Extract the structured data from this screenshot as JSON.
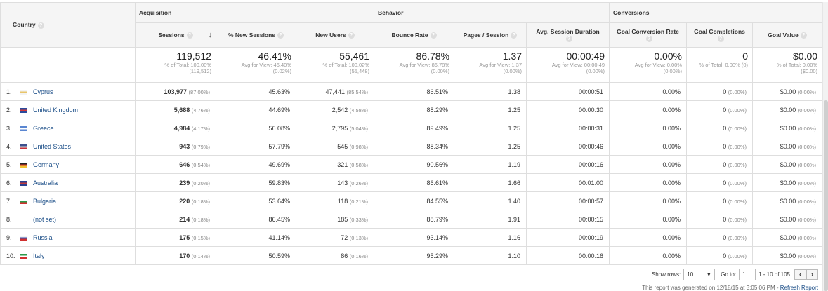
{
  "groups": {
    "acquisition": "Acquisition",
    "behavior": "Behavior",
    "conversions": "Conversions"
  },
  "columns": {
    "country": "Country",
    "sessions": "Sessions",
    "new_sessions": "% New Sessions",
    "new_users": "New Users",
    "bounce_rate": "Bounce Rate",
    "pages_session": "Pages / Session",
    "avg_duration": "Avg. Session Duration",
    "goal_conv": "Goal Conversion Rate",
    "goal_comp": "Goal Completions",
    "goal_value": "Goal Value"
  },
  "sort_icon": "arrow-down-icon",
  "totals": {
    "sessions": {
      "big": "119,512",
      "s1": "% of Total: 100.00%",
      "s2": "(119,512)"
    },
    "new_sessions": {
      "big": "46.41%",
      "s1": "Avg for View: 46.40%",
      "s2": "(0.02%)"
    },
    "new_users": {
      "big": "55,461",
      "s1": "% of Total: 100.02%",
      "s2": "(55,448)"
    },
    "bounce_rate": {
      "big": "86.78%",
      "s1": "Avg for View: 86.78%",
      "s2": "(0.00%)"
    },
    "pages_session": {
      "big": "1.37",
      "s1": "Avg for View: 1.37",
      "s2": "(0.00%)"
    },
    "avg_duration": {
      "big": "00:00:49",
      "s1": "Avg for View: 00:00:49",
      "s2": "(0.00%)"
    },
    "goal_conv": {
      "big": "0.00%",
      "s1": "Avg for View: 0.00%",
      "s2": "(0.00%)"
    },
    "goal_comp": {
      "big": "0",
      "s1": "% of Total: 0.00% (0)",
      "s2": ""
    },
    "goal_value": {
      "big": "$0.00",
      "s1": "% of Total: 0.00%",
      "s2": "($0.00)"
    }
  },
  "rows": [
    {
      "idx": "1.",
      "country": "Cyprus",
      "flag": [
        "#f3f3f3",
        "#e8c46a",
        "#f3f3f3"
      ],
      "sessions": "103,977",
      "sessions_pct": "(87.00%)",
      "new_sessions": "45.63%",
      "new_users": "47,441",
      "new_users_pct": "(85.54%)",
      "bounce": "86.51%",
      "pages": "1.38",
      "duration": "00:00:51",
      "conv": "0.00%",
      "comp": "0",
      "comp_pct": "(0.00%)",
      "value": "$0.00",
      "value_pct": "(0.00%)"
    },
    {
      "idx": "2.",
      "country": "United Kingdom",
      "flag": [
        "#2b4a9c",
        "#d43a3a",
        "#2b4a9c"
      ],
      "sessions": "5,688",
      "sessions_pct": "(4.76%)",
      "new_sessions": "44.69%",
      "new_users": "2,542",
      "new_users_pct": "(4.58%)",
      "bounce": "88.29%",
      "pages": "1.25",
      "duration": "00:00:30",
      "conv": "0.00%",
      "comp": "0",
      "comp_pct": "(0.00%)",
      "value": "$0.00",
      "value_pct": "(0.00%)"
    },
    {
      "idx": "3.",
      "country": "Greece",
      "flag": [
        "#5a86d1",
        "#ffffff",
        "#5a86d1"
      ],
      "sessions": "4,984",
      "sessions_pct": "(4.17%)",
      "new_sessions": "56.08%",
      "new_users": "2,795",
      "new_users_pct": "(5.04%)",
      "bounce": "89.49%",
      "pages": "1.25",
      "duration": "00:00:31",
      "conv": "0.00%",
      "comp": "0",
      "comp_pct": "(0.00%)",
      "value": "$0.00",
      "value_pct": "(0.00%)"
    },
    {
      "idx": "4.",
      "country": "United States",
      "flag": [
        "#3c4f8c",
        "#d8d8d8",
        "#c8303a"
      ],
      "sessions": "943",
      "sessions_pct": "(0.79%)",
      "new_sessions": "57.79%",
      "new_users": "545",
      "new_users_pct": "(0.98%)",
      "bounce": "88.34%",
      "pages": "1.25",
      "duration": "00:00:46",
      "conv": "0.00%",
      "comp": "0",
      "comp_pct": "(0.00%)",
      "value": "$0.00",
      "value_pct": "(0.00%)"
    },
    {
      "idx": "5.",
      "country": "Germany",
      "flag": [
        "#222222",
        "#d22a2a",
        "#f2c230"
      ],
      "sessions": "646",
      "sessions_pct": "(0.54%)",
      "new_sessions": "49.69%",
      "new_users": "321",
      "new_users_pct": "(0.58%)",
      "bounce": "90.56%",
      "pages": "1.19",
      "duration": "00:00:16",
      "conv": "0.00%",
      "comp": "0",
      "comp_pct": "(0.00%)",
      "value": "$0.00",
      "value_pct": "(0.00%)"
    },
    {
      "idx": "6.",
      "country": "Australia",
      "flag": [
        "#2a3f8f",
        "#c43b3b",
        "#2a3f8f"
      ],
      "sessions": "239",
      "sessions_pct": "(0.20%)",
      "new_sessions": "59.83%",
      "new_users": "143",
      "new_users_pct": "(0.26%)",
      "bounce": "86.61%",
      "pages": "1.66",
      "duration": "00:01:00",
      "conv": "0.00%",
      "comp": "0",
      "comp_pct": "(0.00%)",
      "value": "$0.00",
      "value_pct": "(0.00%)"
    },
    {
      "idx": "7.",
      "country": "Bulgaria",
      "flag": [
        "#ffffff",
        "#2c9a4a",
        "#d23030"
      ],
      "sessions": "220",
      "sessions_pct": "(0.18%)",
      "new_sessions": "53.64%",
      "new_users": "118",
      "new_users_pct": "(0.21%)",
      "bounce": "84.55%",
      "pages": "1.40",
      "duration": "00:00:57",
      "conv": "0.00%",
      "comp": "0",
      "comp_pct": "(0.00%)",
      "value": "$0.00",
      "value_pct": "(0.00%)"
    },
    {
      "idx": "8.",
      "country": "(not set)",
      "flag": [
        "#ffffff",
        "#ffffff",
        "#ffffff"
      ],
      "sessions": "214",
      "sessions_pct": "(0.18%)",
      "new_sessions": "86.45%",
      "new_users": "185",
      "new_users_pct": "(0.33%)",
      "bounce": "88.79%",
      "pages": "1.91",
      "duration": "00:00:15",
      "conv": "0.00%",
      "comp": "0",
      "comp_pct": "(0.00%)",
      "value": "$0.00",
      "value_pct": "(0.00%)"
    },
    {
      "idx": "9.",
      "country": "Russia",
      "flag": [
        "#f2f2f2",
        "#2f4fb0",
        "#d0302f"
      ],
      "sessions": "175",
      "sessions_pct": "(0.15%)",
      "new_sessions": "41.14%",
      "new_users": "72",
      "new_users_pct": "(0.13%)",
      "bounce": "93.14%",
      "pages": "1.16",
      "duration": "00:00:19",
      "conv": "0.00%",
      "comp": "0",
      "comp_pct": "(0.00%)",
      "value": "$0.00",
      "value_pct": "(0.00%)"
    },
    {
      "idx": "10.",
      "country": "Italy",
      "flag": [
        "#2c9a4a",
        "#ffffff",
        "#d23030"
      ],
      "sessions": "170",
      "sessions_pct": "(0.14%)",
      "new_sessions": "50.59%",
      "new_users": "86",
      "new_users_pct": "(0.16%)",
      "bounce": "95.29%",
      "pages": "1.10",
      "duration": "00:00:16",
      "conv": "0.00%",
      "comp": "0",
      "comp_pct": "(0.00%)",
      "value": "$0.00",
      "value_pct": "(0.00%)"
    }
  ],
  "pager": {
    "show_rows_label": "Show rows:",
    "show_rows_value": "10",
    "goto_label": "Go to:",
    "goto_value": "1",
    "range": "1 - 10 of 105",
    "prev": "‹",
    "next": "›"
  },
  "footer": {
    "text": "This report was generated on 12/18/15 at 3:05:06 PM - ",
    "link": "Refresh Report"
  }
}
